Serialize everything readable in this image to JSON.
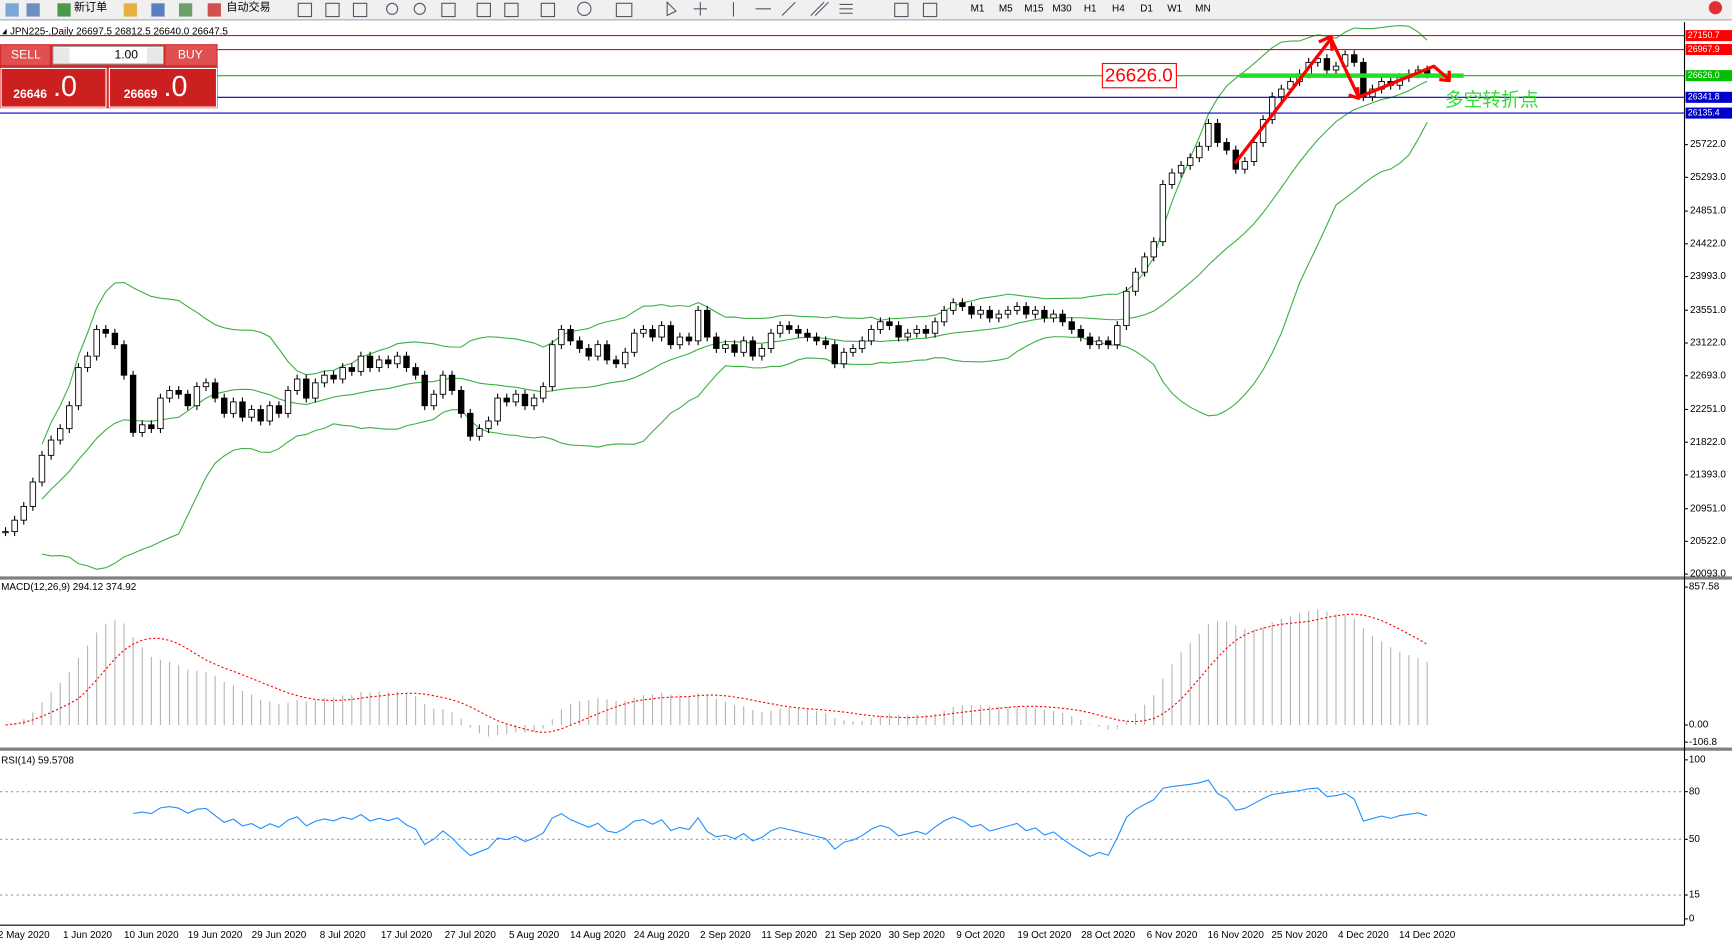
{
  "toolbar": {
    "new_order": "新订单",
    "auto_trading": "自动交易",
    "timeframes": [
      "M1",
      "M5",
      "M15",
      "M30",
      "H1",
      "H4",
      "D1",
      "W1",
      "MN"
    ]
  },
  "trade_panel": {
    "sell": "SELL",
    "buy": "BUY",
    "lots": "1.00",
    "sell_price": "26646",
    "sell_frac": ".0",
    "buy_price": "26669",
    "buy_frac": ".0"
  },
  "chart_data": [
    {
      "type": "candlestick",
      "title": "JPN225-,Daily  26697.5 26812.5 26640.0 26647.5",
      "close": [
        20650,
        20800,
        20980,
        21300,
        21650,
        21850,
        22000,
        22300,
        22800,
        22950,
        23300,
        23250,
        23100,
        22700,
        21950,
        22050,
        22000,
        22400,
        22500,
        22450,
        22300,
        22550,
        22600,
        22400,
        22200,
        22350,
        22150,
        22250,
        22100,
        22300,
        22200,
        22500,
        22650,
        22400,
        22600,
        22700,
        22650,
        22800,
        22750,
        22950,
        22800,
        22900,
        22850,
        22950,
        22800,
        22700,
        22300,
        22450,
        22700,
        22500,
        22200,
        21900,
        22000,
        22100,
        22400,
        22350,
        22450,
        22300,
        22400,
        22550,
        23100,
        23300,
        23150,
        23050,
        22950,
        23100,
        22900,
        22850,
        23000,
        23250,
        23300,
        23200,
        23350,
        23100,
        23200,
        23150,
        23550,
        23200,
        23050,
        23100,
        23000,
        23150,
        22950,
        23050,
        23250,
        23350,
        23300,
        23250,
        23200,
        23150,
        23100,
        22850,
        23000,
        23050,
        23150,
        23300,
        23400,
        23350,
        23200,
        23250,
        23300,
        23250,
        23400,
        23550,
        23650,
        23600,
        23500,
        23550,
        23450,
        23500,
        23550,
        23600,
        23500,
        23550,
        23450,
        23500,
        23400,
        23300,
        23200,
        23100,
        23150,
        23100,
        23350,
        23800,
        24050,
        24250,
        24450,
        25200,
        25350,
        25450,
        25550,
        25700,
        26000,
        25750,
        25650,
        25400,
        25500,
        25750,
        26050,
        26350,
        26450,
        26550,
        26650,
        26800,
        26850,
        26700,
        26750,
        26900,
        26800,
        26350,
        26450,
        26550,
        26500,
        26600,
        26650,
        26700,
        26647.5
      ],
      "date_labels": [
        "2 May 2020",
        "1 Jun 2020",
        "10 Jun 2020",
        "19 Jun 2020",
        "29 Jun 2020",
        "8 Jul 2020",
        "17 Jul 2020",
        "27 Jul 2020",
        "5 Aug 2020",
        "14 Aug 2020",
        "24 Aug 2020",
        "2 Sep 2020",
        "11 Sep 2020",
        "21 Sep 2020",
        "30 Sep 2020",
        "9 Oct 2020",
        "19 Oct 2020",
        "28 Oct 2020",
        "6 Nov 2020",
        "16 Nov 2020",
        "25 Nov 2020",
        "4 Dec 2020",
        "14 Dec 2020"
      ],
      "ylim": [
        20064,
        27299
      ],
      "yticks": [
        {
          "value": 25722,
          "label": "25722.0"
        },
        {
          "value": 25293,
          "label": "25293.0"
        },
        {
          "value": 24851,
          "label": "24851.0"
        },
        {
          "value": 24422,
          "label": "24422.0"
        },
        {
          "value": 23993,
          "label": "23993.0"
        },
        {
          "value": 23551,
          "label": "23551.0"
        },
        {
          "value": 23122,
          "label": "23122.0"
        },
        {
          "value": 22693,
          "label": "22693.0"
        },
        {
          "value": 22251,
          "label": "22251.0"
        },
        {
          "value": 21822,
          "label": "21822.0"
        },
        {
          "value": 21393,
          "label": "21393.0"
        },
        {
          "value": 20951,
          "label": "20951.0"
        },
        {
          "value": 20522,
          "label": "20522.0"
        },
        {
          "value": 20093,
          "label": "20093.0"
        }
      ],
      "levels": [
        {
          "value": 27150.7,
          "label": "27150.7",
          "color": "#ff0000"
        },
        {
          "value": 26967.9,
          "label": "26967.9",
          "color": "#ff0000"
        },
        {
          "value": 26626,
          "label": "26626.0",
          "color": "#00c000"
        },
        {
          "value": 26341.8,
          "label": "26341.8",
          "color": "#0000cc"
        },
        {
          "value": 26135.4,
          "label": "26135.4",
          "color": "#0000cc"
        }
      ],
      "price_label": {
        "value": 26626,
        "label": "26626.0"
      },
      "annotation": "多空转折点",
      "band_color": "#3cb043"
    },
    {
      "type": "macd",
      "title": "MACD(12,26,9) 294.12 374.92",
      "ylim": [
        -140,
        897
      ],
      "yticks": [
        857.58,
        {
          "value": 0,
          "label": "0.00"
        },
        -106.8
      ],
      "color": "#b4b4b4",
      "signal_color": "#ff0000"
    },
    {
      "type": "rsi",
      "title": "RSI(14) 59.5708",
      "ylim": [
        -4,
        105
      ],
      "yticks": [
        100,
        80,
        50,
        15,
        0
      ],
      "levels": [
        80,
        50,
        15
      ],
      "color": "#1e90ff"
    }
  ]
}
